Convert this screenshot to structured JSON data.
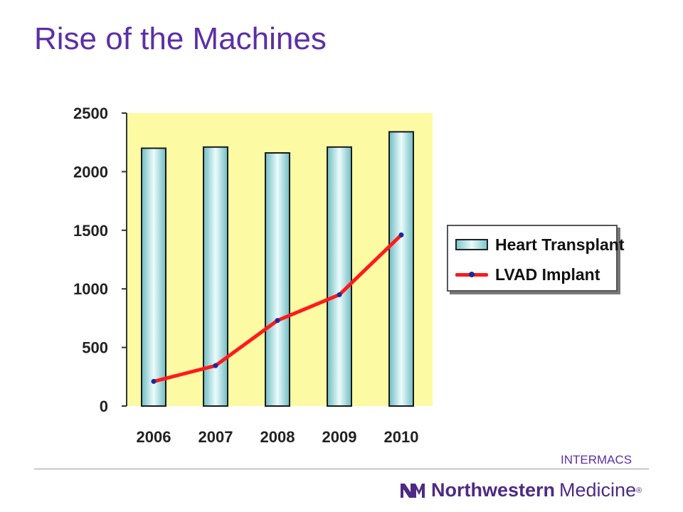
{
  "slide": {
    "title": "Rise of the Machines",
    "source": "INTERMACS"
  },
  "logo": {
    "word1": "Northwestern",
    "word2": "Medicine",
    "mark": "®",
    "icon": "nm-logo-icon",
    "color": "#4e2a84"
  },
  "colors": {
    "plot_background": "#fdfaa4",
    "bar_fill": "#a9dfe2",
    "line": "#ff1a1a",
    "marker": "#1a2a9a",
    "title": "#5b2fa6"
  },
  "chart_data": {
    "type": "bar",
    "categories": [
      "2006",
      "2007",
      "2008",
      "2009",
      "2010"
    ],
    "series": [
      {
        "name": "Heart Transplant",
        "type": "bar",
        "values": [
          2200,
          2210,
          2160,
          2210,
          2340
        ]
      },
      {
        "name": "LVAD Implant",
        "type": "line",
        "values": [
          210,
          345,
          730,
          950,
          1460
        ]
      }
    ],
    "ylim": [
      0,
      2500
    ],
    "yticks": [
      "0",
      "500",
      "1000",
      "1500",
      "2000",
      "2500"
    ],
    "grid": false,
    "legend_position": "right"
  }
}
